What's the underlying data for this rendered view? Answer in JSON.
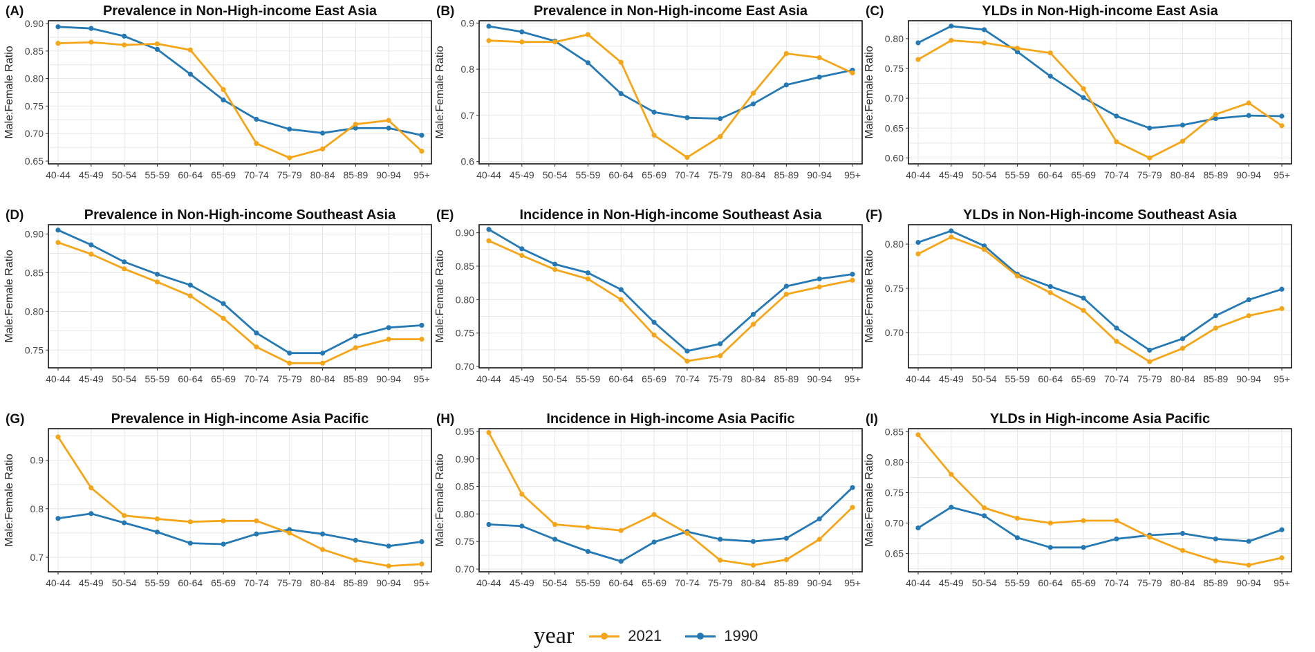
{
  "colors": {
    "s2021": "#F5A518",
    "s1990": "#2479B4",
    "grid": "#E6E6E6",
    "frame": "#111111",
    "text": "#444444"
  },
  "legend": {
    "title": "year",
    "items": [
      {
        "label": "2021",
        "series": "2021"
      },
      {
        "label": "1990",
        "series": "1990"
      }
    ]
  },
  "chart_data": [
    {
      "id": "A",
      "type": "line",
      "panel_label": "(A)",
      "title": "Prevalence in Non-High-income East Asia",
      "ylabel": "Male:Female Ratio",
      "xlabel": "",
      "categories": [
        "40-44",
        "45-49",
        "50-54",
        "55-59",
        "60-64",
        "65-69",
        "70-74",
        "75-79",
        "80-84",
        "85-89",
        "90-94",
        "95+"
      ],
      "ylim": [
        0.645,
        0.905
      ],
      "yticks": [
        0.65,
        0.7,
        0.75,
        0.8,
        0.85,
        0.9
      ],
      "ytick_labels": [
        "0.65",
        "0.70",
        "0.75",
        "0.80",
        "0.85",
        "0.90"
      ],
      "series": [
        {
          "name": "2021",
          "values": [
            0.864,
            0.866,
            0.861,
            0.863,
            0.852,
            0.78,
            0.682,
            0.656,
            0.672,
            0.717,
            0.724,
            0.668
          ]
        },
        {
          "name": "1990",
          "values": [
            0.894,
            0.891,
            0.877,
            0.853,
            0.808,
            0.761,
            0.726,
            0.708,
            0.701,
            0.71,
            0.71,
            0.697
          ]
        }
      ]
    },
    {
      "id": "B",
      "type": "line",
      "panel_label": "(B)",
      "title": "Prevalence in Non-High-income East Asia",
      "ylabel": "Male:Female Ratio",
      "xlabel": "",
      "categories": [
        "40-44",
        "45-49",
        "50-54",
        "55-59",
        "60-64",
        "65-69",
        "70-74",
        "75-79",
        "80-84",
        "85-89",
        "90-94",
        "95+"
      ],
      "ylim": [
        0.595,
        0.905
      ],
      "yticks": [
        0.6,
        0.7,
        0.8,
        0.9
      ],
      "ytick_labels": [
        "0.6",
        "0.7",
        "0.8",
        "0.9"
      ],
      "series": [
        {
          "name": "2021",
          "values": [
            0.862,
            0.859,
            0.859,
            0.875,
            0.815,
            0.657,
            0.609,
            0.654,
            0.748,
            0.834,
            0.825,
            0.792
          ]
        },
        {
          "name": "1990",
          "values": [
            0.893,
            0.881,
            0.861,
            0.814,
            0.747,
            0.707,
            0.695,
            0.693,
            0.725,
            0.766,
            0.783,
            0.798
          ]
        }
      ]
    },
    {
      "id": "C",
      "type": "line",
      "panel_label": "(C)",
      "title": "YLDs in Non-High-income East Asia",
      "ylabel": "Male:Female Ratio",
      "xlabel": "",
      "categories": [
        "40-44",
        "45-49",
        "50-54",
        "55-59",
        "60-64",
        "65-69",
        "70-74",
        "75-79",
        "80-84",
        "85-89",
        "90-94",
        "95+"
      ],
      "ylim": [
        0.59,
        0.83
      ],
      "yticks": [
        0.6,
        0.65,
        0.7,
        0.75,
        0.8
      ],
      "ytick_labels": [
        "0.60",
        "0.65",
        "0.70",
        "0.75",
        "0.80"
      ],
      "series": [
        {
          "name": "2021",
          "values": [
            0.765,
            0.797,
            0.793,
            0.784,
            0.776,
            0.716,
            0.627,
            0.6,
            0.628,
            0.673,
            0.692,
            0.654
          ]
        },
        {
          "name": "1990",
          "values": [
            0.793,
            0.821,
            0.815,
            0.778,
            0.737,
            0.701,
            0.67,
            0.65,
            0.655,
            0.666,
            0.671,
            0.67
          ]
        }
      ]
    },
    {
      "id": "D",
      "type": "line",
      "panel_label": "(D)",
      "title": "Prevalence in Non-High-income Southeast Asia",
      "ylabel": "Male:Female Ratio",
      "xlabel": "",
      "categories": [
        "40-44",
        "45-49",
        "50-54",
        "55-59",
        "60-64",
        "65-69",
        "70-74",
        "75-79",
        "80-84",
        "85-89",
        "90-94",
        "95+"
      ],
      "ylim": [
        0.727,
        0.912
      ],
      "yticks": [
        0.75,
        0.8,
        0.85,
        0.9
      ],
      "ytick_labels": [
        "0.75",
        "0.80",
        "0.85",
        "0.90"
      ],
      "series": [
        {
          "name": "2021",
          "values": [
            0.889,
            0.874,
            0.855,
            0.838,
            0.82,
            0.791,
            0.754,
            0.733,
            0.733,
            0.753,
            0.764,
            0.764
          ]
        },
        {
          "name": "1990",
          "values": [
            0.905,
            0.886,
            0.864,
            0.848,
            0.834,
            0.81,
            0.772,
            0.746,
            0.746,
            0.768,
            0.779,
            0.782
          ]
        }
      ]
    },
    {
      "id": "E",
      "type": "line",
      "panel_label": "(E)",
      "title": "Incidence in Non-High-income Southeast Asia",
      "ylabel": "Male:Female Ratio",
      "xlabel": "",
      "categories": [
        "40-44",
        "45-49",
        "50-54",
        "55-59",
        "60-64",
        "65-69",
        "70-74",
        "75-79",
        "80-84",
        "85-89",
        "90-94",
        "95+"
      ],
      "ylim": [
        0.698,
        0.912
      ],
      "yticks": [
        0.7,
        0.75,
        0.8,
        0.85,
        0.9
      ],
      "ytick_labels": [
        "0.70",
        "0.75",
        "0.80",
        "0.85",
        "0.90"
      ],
      "series": [
        {
          "name": "2021",
          "values": [
            0.888,
            0.866,
            0.845,
            0.831,
            0.8,
            0.747,
            0.708,
            0.716,
            0.763,
            0.808,
            0.819,
            0.829
          ]
        },
        {
          "name": "1990",
          "values": [
            0.905,
            0.876,
            0.853,
            0.84,
            0.815,
            0.766,
            0.723,
            0.734,
            0.778,
            0.82,
            0.831,
            0.838
          ]
        }
      ]
    },
    {
      "id": "F",
      "type": "line",
      "panel_label": "(F)",
      "title": "YLDs in Non-High-income Southeast Asia",
      "ylabel": "Male:Female Ratio",
      "xlabel": "",
      "categories": [
        "40-44",
        "45-49",
        "50-54",
        "55-59",
        "60-64",
        "65-69",
        "70-74",
        "75-79",
        "80-84",
        "85-89",
        "90-94",
        "95+"
      ],
      "ylim": [
        0.66,
        0.822
      ],
      "yticks": [
        0.7,
        0.75,
        0.8
      ],
      "ytick_labels": [
        "0.70",
        "0.75",
        "0.80"
      ],
      "series": [
        {
          "name": "2021",
          "values": [
            0.789,
            0.808,
            0.794,
            0.764,
            0.745,
            0.725,
            0.69,
            0.667,
            0.682,
            0.705,
            0.719,
            0.727
          ]
        },
        {
          "name": "1990",
          "values": [
            0.802,
            0.815,
            0.798,
            0.766,
            0.752,
            0.739,
            0.705,
            0.68,
            0.693,
            0.719,
            0.737,
            0.749
          ]
        }
      ]
    },
    {
      "id": "G",
      "type": "line",
      "panel_label": "(G)",
      "title": "Prevalence in High-income Asia Pacific",
      "ylabel": "Male:Female Ratio",
      "xlabel": "",
      "categories": [
        "40-44",
        "45-49",
        "50-54",
        "55-59",
        "60-64",
        "65-69",
        "70-74",
        "75-79",
        "80-84",
        "85-89",
        "90-94",
        "95+"
      ],
      "ylim": [
        0.67,
        0.965
      ],
      "yticks": [
        0.7,
        0.8,
        0.9
      ],
      "ytick_labels": [
        "0.7",
        "0.8",
        "0.9"
      ],
      "series": [
        {
          "name": "2021",
          "values": [
            0.948,
            0.843,
            0.786,
            0.779,
            0.773,
            0.775,
            0.775,
            0.75,
            0.716,
            0.694,
            0.682,
            0.686
          ]
        },
        {
          "name": "1990",
          "values": [
            0.78,
            0.79,
            0.771,
            0.752,
            0.729,
            0.727,
            0.748,
            0.757,
            0.748,
            0.735,
            0.723,
            0.732
          ]
        }
      ]
    },
    {
      "id": "H",
      "type": "line",
      "panel_label": "(H)",
      "title": "Incidence in High-income Asia Pacific",
      "ylabel": "Male:Female Ratio",
      "xlabel": "",
      "categories": [
        "40-44",
        "45-49",
        "50-54",
        "55-59",
        "60-64",
        "65-69",
        "70-74",
        "75-79",
        "80-84",
        "85-89",
        "90-94",
        "95+"
      ],
      "ylim": [
        0.695,
        0.955
      ],
      "yticks": [
        0.7,
        0.75,
        0.8,
        0.85,
        0.9,
        0.95
      ],
      "ytick_labels": [
        "0.70",
        "0.75",
        "0.80",
        "0.85",
        "0.90",
        "0.95"
      ],
      "series": [
        {
          "name": "2021",
          "values": [
            0.948,
            0.836,
            0.781,
            0.776,
            0.77,
            0.799,
            0.765,
            0.716,
            0.707,
            0.717,
            0.754,
            0.812
          ]
        },
        {
          "name": "1990",
          "values": [
            0.781,
            0.778,
            0.754,
            0.732,
            0.714,
            0.749,
            0.768,
            0.754,
            0.75,
            0.756,
            0.791,
            0.848
          ]
        }
      ]
    },
    {
      "id": "I",
      "type": "line",
      "panel_label": "(I)",
      "title": "YLDs in High-income Asia Pacific",
      "ylabel": "Male:Female Ratio",
      "xlabel": "",
      "categories": [
        "40-44",
        "45-49",
        "50-54",
        "55-59",
        "60-64",
        "65-69",
        "70-74",
        "75-79",
        "80-84",
        "85-89",
        "90-94",
        "95+"
      ],
      "ylim": [
        0.62,
        0.855
      ],
      "yticks": [
        0.65,
        0.7,
        0.75,
        0.8,
        0.85
      ],
      "ytick_labels": [
        "0.65",
        "0.70",
        "0.75",
        "0.80",
        "0.85"
      ],
      "series": [
        {
          "name": "2021",
          "values": [
            0.845,
            0.78,
            0.725,
            0.708,
            0.7,
            0.704,
            0.704,
            0.677,
            0.655,
            0.638,
            0.631,
            0.643
          ]
        },
        {
          "name": "1990",
          "values": [
            0.692,
            0.726,
            0.712,
            0.676,
            0.66,
            0.66,
            0.674,
            0.68,
            0.683,
            0.674,
            0.67,
            0.689
          ]
        }
      ]
    }
  ]
}
